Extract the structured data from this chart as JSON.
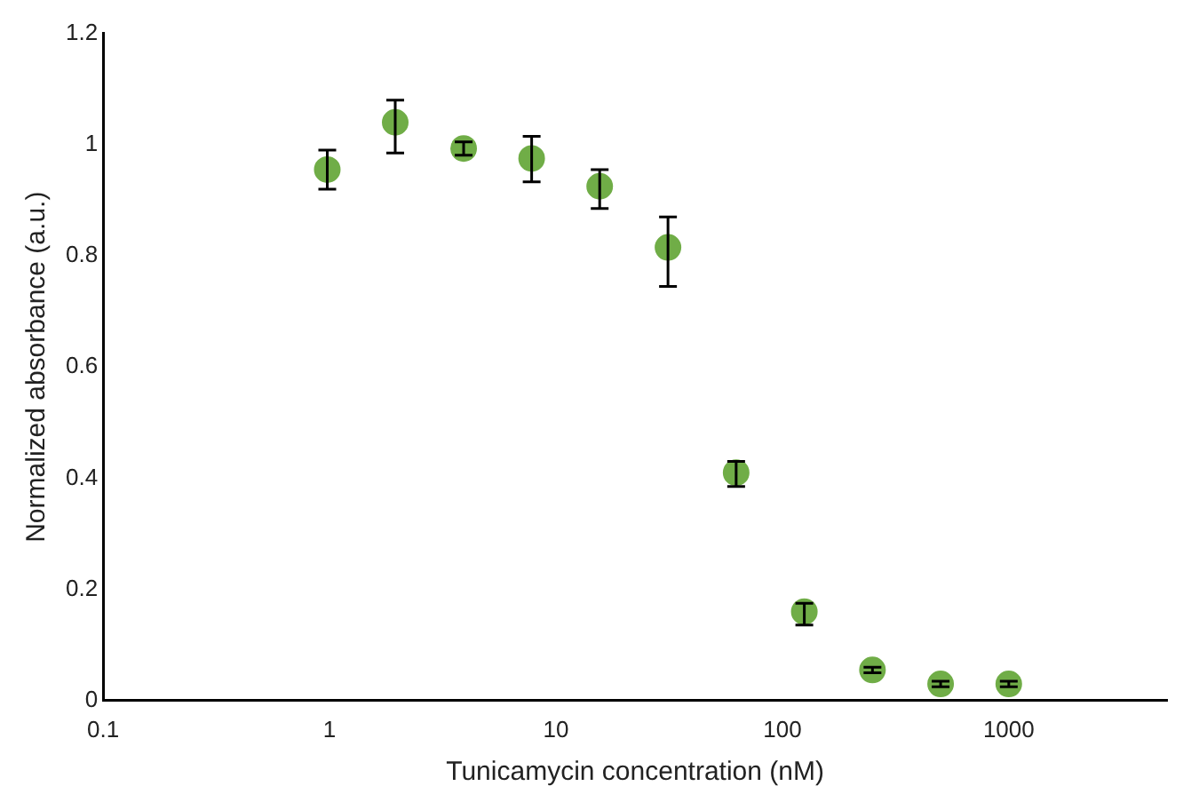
{
  "chart_data": {
    "type": "scatter",
    "xlabel": "Tunicamycin concentration (nM)",
    "ylabel": "Normalized absorbance (a.u.)",
    "x": [
      0.977,
      1.95,
      3.91,
      7.81,
      15.6,
      31.25,
      62.5,
      125,
      250,
      500,
      1000
    ],
    "series": [
      {
        "color": "#70ad47",
        "values": [
          0.955,
          1.04,
          0.993,
          0.975,
          0.925,
          0.815,
          0.41,
          0.16,
          0.055,
          0.03,
          0.03
        ],
        "errors": [
          [
            0.92,
            0.99
          ],
          [
            0.985,
            1.08
          ],
          [
            0.981,
            1.005
          ],
          [
            0.933,
            1.015
          ],
          [
            0.885,
            0.955
          ],
          [
            0.745,
            0.87
          ],
          [
            0.385,
            0.43
          ],
          [
            0.136,
            0.175
          ],
          0.005,
          0.005,
          0.005
        ]
      }
    ],
    "log": "x",
    "xlim": [
      0.1,
      5000
    ],
    "xticks": [
      0.1,
      1,
      10,
      100,
      1000
    ],
    "ylim": [
      0,
      1.2
    ],
    "yticks": [
      0,
      0.2,
      0.4,
      0.6,
      0.8,
      1,
      1.2
    ],
    "grid": false,
    "legend": false,
    "marker": "circle"
  }
}
